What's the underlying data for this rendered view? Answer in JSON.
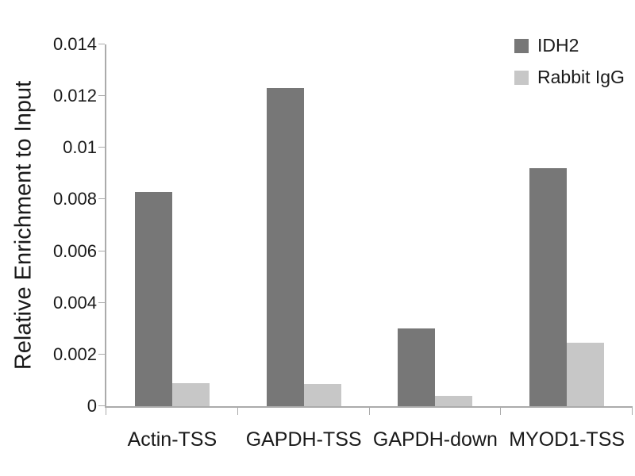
{
  "chart_data": {
    "type": "bar",
    "title": "",
    "xlabel": "",
    "ylabel": "Relative Enrichment to Input",
    "categories": [
      "Actin-TSS",
      "GAPDH-TSS",
      "GAPDH-down",
      "MYOD1-TSS"
    ],
    "series": [
      {
        "name": "IDH2",
        "color": "#777777",
        "values": [
          0.0083,
          0.0123,
          0.003,
          0.0092
        ]
      },
      {
        "name": "Rabbit IgG",
        "color": "#c7c7c7",
        "values": [
          0.0009,
          0.00085,
          0.0004,
          0.00245
        ]
      }
    ],
    "ylim": [
      0,
      0.014
    ],
    "y_ticks": [
      0,
      0.002,
      0.004,
      0.006,
      0.008,
      0.01,
      0.012,
      0.014
    ],
    "y_tick_labels": [
      "0",
      "0.002",
      "0.004",
      "0.006",
      "0.008",
      "0.01",
      "0.012",
      "0.014"
    ],
    "grid": false,
    "legend_position": "top-right",
    "axis_color": "#ababab",
    "text_color": "#1a1a1a"
  }
}
